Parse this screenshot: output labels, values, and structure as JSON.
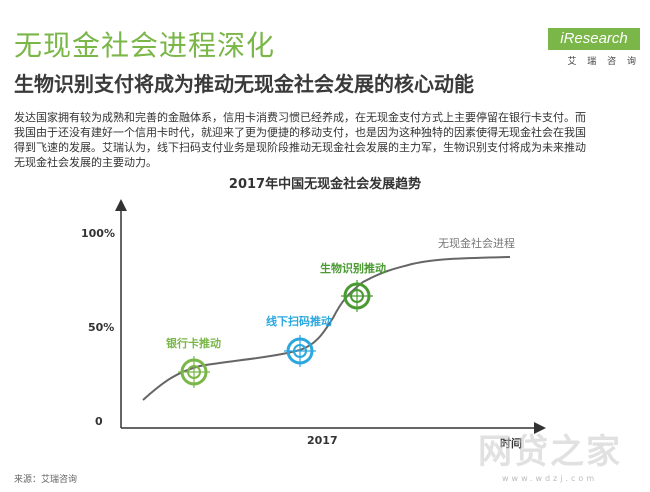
{
  "header": {
    "title": "无现金社会进程深化",
    "subtitle": "生物识别支付将成为推动无现金社会发展的核心动能"
  },
  "logo": {
    "text": "iResearch",
    "cn": "艾 瑞 咨 询"
  },
  "intro": {
    "lines": [
      "发达国家拥有较为成熟和完善的金融体系，信用卡消费习惯已经养成，在无现金支付方式上主要停留在银行卡支付。而",
      "我国由于还没有建好一个信用卡时代，就迎来了更为便捷的移动支付，也是因为这种独特的因素使得无现金社会在我国",
      "得到飞速的发展。艾瑞认为，线下扫码支付业务是现阶段推动无现金社会发展的主力军，生物识别支付将成为未来推动",
      "无现金社会发展的主要动力。"
    ]
  },
  "diagram": {
    "title": "2017年中国无现金社会发展趋势",
    "y_ticks": [
      "100%",
      "50%",
      "0"
    ],
    "x_label": "时间",
    "x_tick": "2017",
    "curve_label": "无现金社会进程",
    "milestones": [
      {
        "label": "银行卡推动",
        "color": "#7ab648"
      },
      {
        "label": "线下扫码推动",
        "color": "#2aa7de"
      },
      {
        "label": "生物识别推动",
        "color": "#4a9a32"
      }
    ]
  },
  "source": "来源：艾瑞咨询",
  "watermark": {
    "main": "网贷之家",
    "sub": "www.wdzj.com"
  },
  "colors": {
    "accent": "#7ab648",
    "blue": "#2aa7de",
    "dark_green": "#4a9a32",
    "curve": "#666666"
  }
}
